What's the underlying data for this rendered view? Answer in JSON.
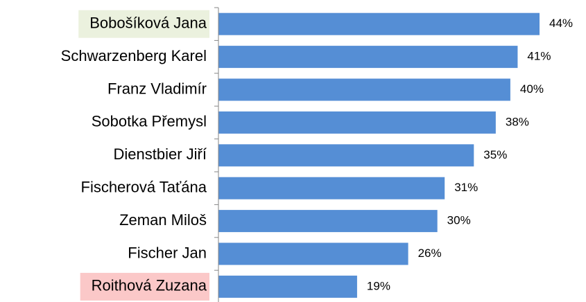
{
  "chart_data": {
    "type": "barh",
    "categories": [
      "Bobošíková Jana",
      "Schwarzenberg Karel",
      "Franz Vladimír",
      "Sobotka Přemysl",
      "Dienstbier Jiří",
      "Fischerová Taťána",
      "Zeman Miloš",
      "Fischer Jan",
      "Roithová Zuzana"
    ],
    "values": [
      44,
      41,
      40,
      38,
      35,
      31,
      30,
      26,
      19
    ],
    "value_labels": [
      "44%",
      "41%",
      "40%",
      "38%",
      "35%",
      "31%",
      "30%",
      "26%",
      "19%"
    ],
    "color": "#558ed5",
    "label_backgrounds": [
      "#ebf1de",
      null,
      null,
      null,
      null,
      null,
      null,
      null,
      "#fbc8c8"
    ]
  }
}
